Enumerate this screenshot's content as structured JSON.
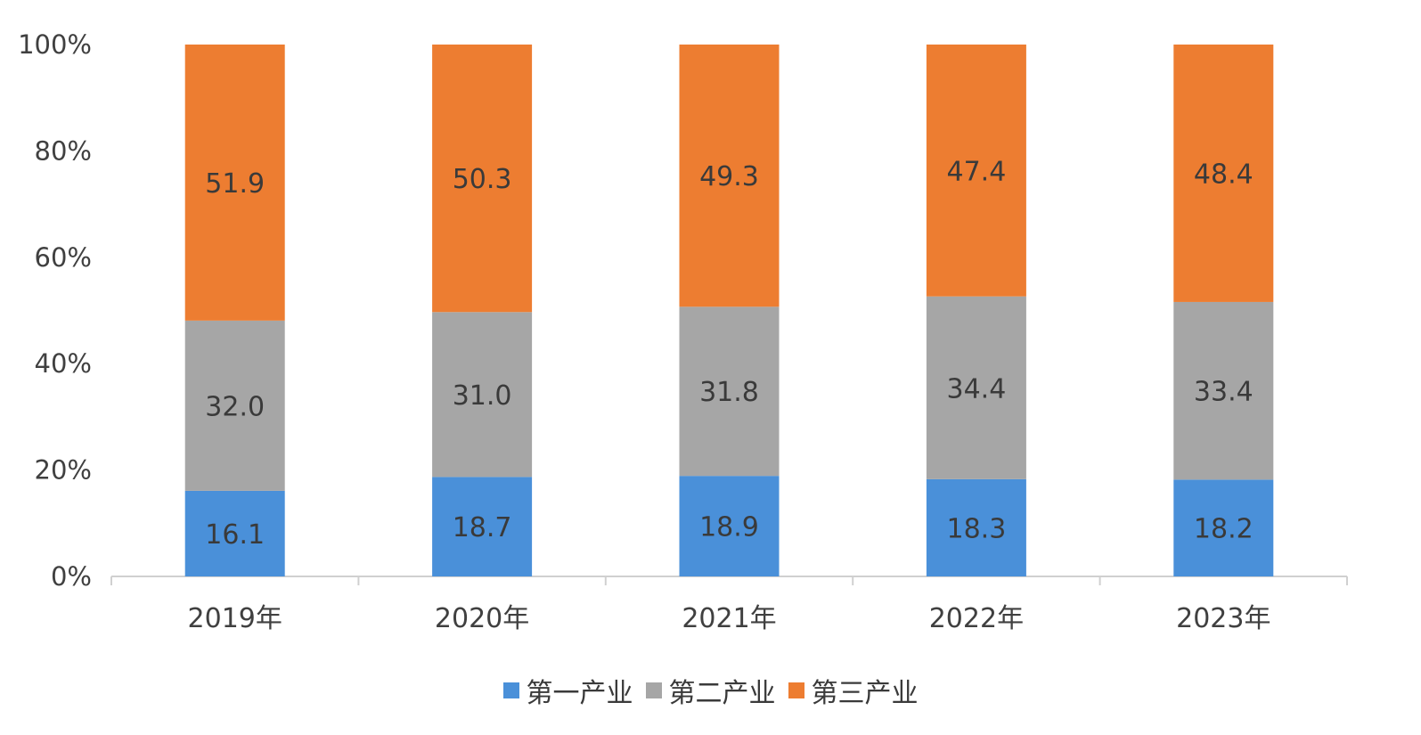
{
  "chart_data": {
    "type": "bar",
    "stacked": true,
    "percent_stacked": true,
    "categories": [
      "2019年",
      "2020年",
      "2021年",
      "2022年",
      "2023年"
    ],
    "series": [
      {
        "name": "第一产业",
        "color": "#4a90d9",
        "values": [
          16.1,
          18.7,
          18.9,
          18.3,
          18.2
        ]
      },
      {
        "name": "第二产业",
        "color": "#a6a6a6",
        "values": [
          32.0,
          31.0,
          31.8,
          34.4,
          33.4
        ]
      },
      {
        "name": "第三产业",
        "color": "#ed7d31",
        "values": [
          51.9,
          50.3,
          49.3,
          47.4,
          48.4
        ]
      }
    ],
    "y_ticks": [
      "0%",
      "20%",
      "40%",
      "60%",
      "80%",
      "100%"
    ],
    "ylim": [
      0,
      100
    ],
    "legend_position": "bottom",
    "grid": false
  }
}
